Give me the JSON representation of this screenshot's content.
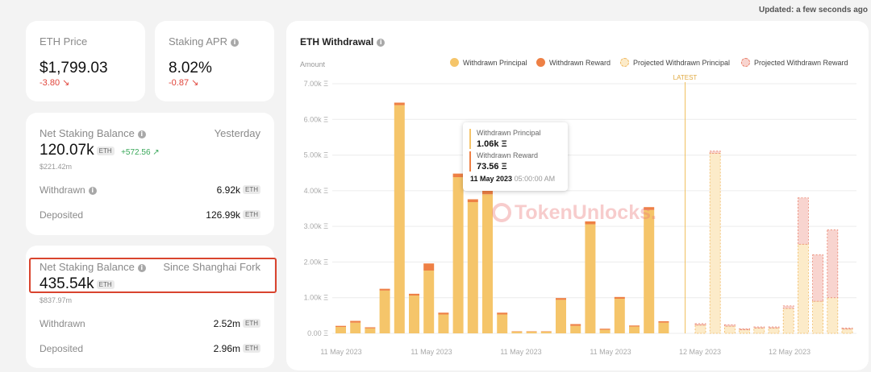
{
  "updated": "Updated: a few seconds ago",
  "eth_price": {
    "label": "ETH Price",
    "value": "$1,799.03",
    "change": "-3.80 ↘"
  },
  "staking_apr": {
    "label": "Staking APR",
    "value": "8.02%",
    "change": "-0.87 ↘"
  },
  "net_yesterday": {
    "label": "Net Staking Balance",
    "period": "Yesterday",
    "value": "120.07k",
    "unit": "ETH",
    "change": "+572.56 ↗",
    "usd": "$221.42m",
    "withdrawn_label": "Withdrawn",
    "withdrawn_value": "6.92k",
    "deposited_label": "Deposited",
    "deposited_value": "126.99k"
  },
  "net_shanghai": {
    "label": "Net Staking Balance",
    "period": "Since Shanghai Fork",
    "value": "435.54k",
    "unit": "ETH",
    "usd": "$837.97m",
    "withdrawn_label": "Withdrawn",
    "withdrawn_value": "2.52m",
    "deposited_label": "Deposited",
    "deposited_value": "2.96m"
  },
  "chart_data": {
    "type": "bar",
    "title": "ETH Withdrawal",
    "ylabel": "Amount",
    "ylim": [
      0,
      7000
    ],
    "yticks": [
      "0.00",
      "1.00k",
      "2.00k",
      "3.00k",
      "4.00k",
      "5.00k",
      "6.00k",
      "7.00k"
    ],
    "y_unit": "Ξ",
    "xticks": [
      "11 May 2023",
      "11 May 2023",
      "11 May 2023",
      "11 May 2023",
      "12 May 2023",
      "12 May 2023"
    ],
    "latest_label": "LATEST",
    "legend": [
      "Withdrawn Principal",
      "Withdrawn Reward",
      "Projected Withdrawn Principal",
      "Projected Withdrawn Reward"
    ],
    "principal": [
      180,
      300,
      140,
      1200,
      6400,
      1060,
      1760,
      530,
      4380,
      3680,
      3900,
      530,
      50,
      50,
      50,
      940,
      210,
      3060,
      100,
      970,
      190,
      3460,
      300
    ],
    "reward": [
      30,
      50,
      30,
      50,
      70,
      50,
      200,
      50,
      100,
      80,
      100,
      50,
      10,
      10,
      10,
      50,
      50,
      80,
      30,
      50,
      30,
      80,
      40
    ],
    "projected_principal": [
      230,
      5050,
      200,
      100,
      150,
      150,
      700,
      2500,
      900,
      1000,
      120
    ],
    "projected_reward": [
      40,
      60,
      40,
      30,
      30,
      30,
      70,
      1300,
      1300,
      1900,
      30
    ],
    "colors": {
      "principal": "#f5c56a",
      "reward": "#ee8045",
      "projected_fill": "#fcebc9",
      "projected_reward_fill": "#f8d4cf",
      "latest": "#f0c060"
    }
  },
  "tooltip": {
    "principal_label": "Withdrawn Principal",
    "principal_value": "1.06k Ξ",
    "reward_label": "Withdrawn Reward",
    "reward_value": "73.56 Ξ",
    "date": "11 May 2023",
    "time": "05:00:00 AM"
  },
  "watermark": "TokenUnlocks."
}
